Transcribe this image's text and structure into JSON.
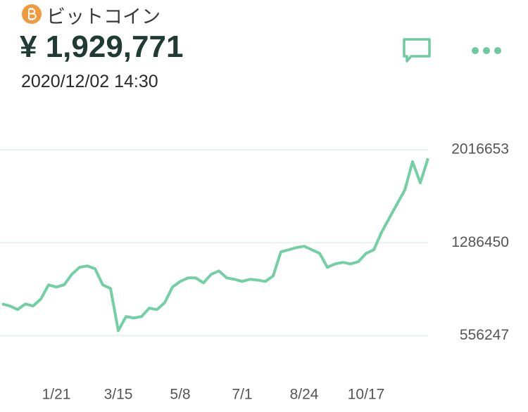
{
  "header": {
    "name": "ビットコイン",
    "price": "¥ 1,929,771",
    "datetime": "2020/12/02 14:30"
  },
  "chart_data": {
    "type": "line",
    "categories": [
      null,
      null,
      null,
      null,
      null,
      null,
      null,
      "1/21",
      null,
      null,
      null,
      null,
      null,
      null,
      null,
      "3/15",
      null,
      null,
      null,
      null,
      null,
      null,
      null,
      "5/8",
      null,
      null,
      null,
      null,
      null,
      null,
      null,
      "7/1",
      null,
      null,
      null,
      null,
      null,
      null,
      null,
      "8/24",
      null,
      null,
      null,
      null,
      null,
      null,
      null,
      "10/17",
      null,
      null,
      null,
      null,
      null,
      null,
      null,
      null
    ],
    "series": [
      {
        "color": "#72d0a4",
        "values": [
          805000,
          789000,
          761000,
          805000,
          789000,
          844000,
          955000,
          938000,
          955000,
          1038000,
          1093000,
          1104000,
          1082000,
          955000,
          927000,
          595000,
          706000,
          695000,
          706000,
          772000,
          761000,
          816000,
          938000,
          982000,
          1010000,
          1010000,
          971000,
          1038000,
          1065000,
          1010000,
          999000,
          982000,
          999000,
          993000,
          982000,
          1026000,
          1215000,
          1231000,
          1248000,
          1259000,
          1231000,
          1203000,
          1093000,
          1120000,
          1132000,
          1120000,
          1137000,
          1203000,
          1231000,
          1369000,
          1480000,
          1591000,
          1701000,
          1923000,
          1757000,
          1950000
        ]
      }
    ],
    "ylim": [
      420000,
      2150000
    ],
    "yticks": [
      556247,
      1286450,
      2016653
    ],
    "grid": true
  }
}
